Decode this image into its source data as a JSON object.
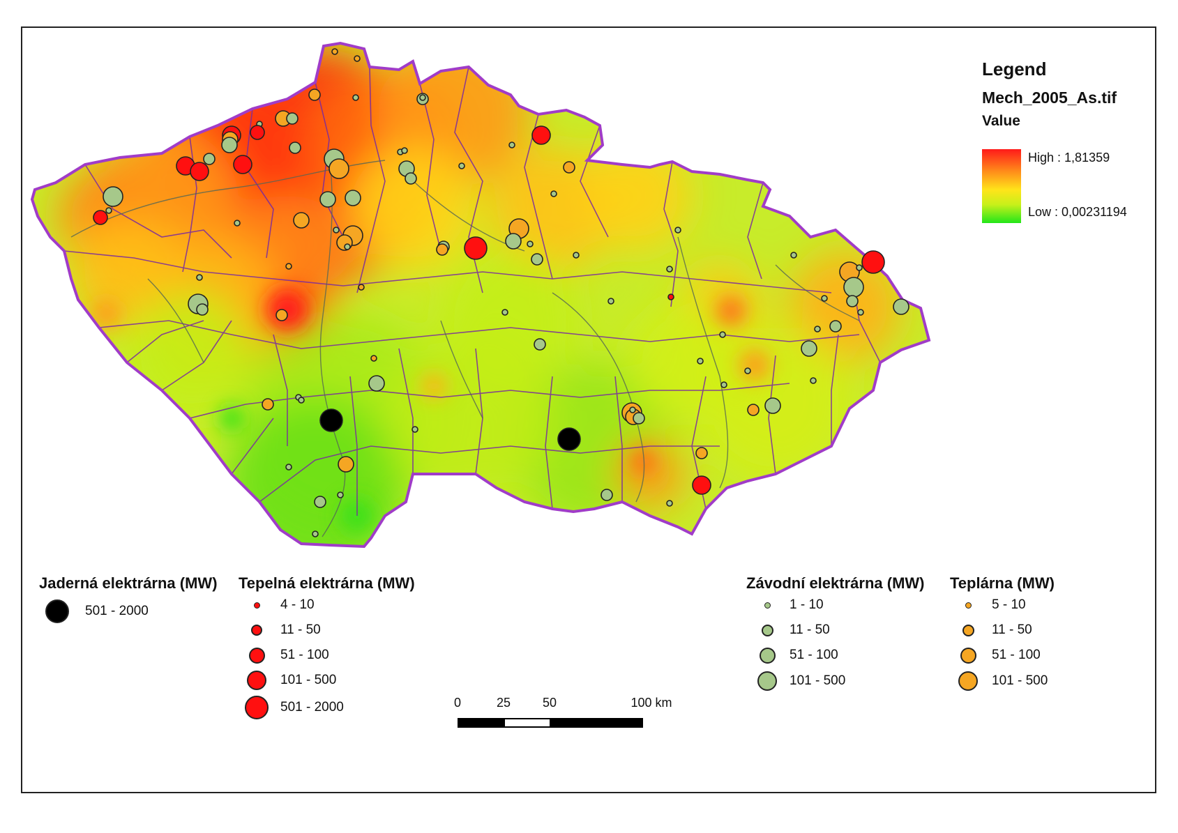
{
  "legend": {
    "title": "Legend",
    "layer_name": "Mech_2005_As.tif",
    "value_label": "Value",
    "high_label": "High : 1,81359",
    "low_label": "Low : 0,00231194",
    "ramp_colors": [
      "#ff1a1a",
      "#ff8c1a",
      "#ffe41a",
      "#c8f01a",
      "#22e61a"
    ]
  },
  "symbol_legends": {
    "nuclear": {
      "title": "Jaderná elektrárna (MW)",
      "color": "#000000",
      "classes": [
        "501 - 2000"
      ]
    },
    "thermal": {
      "title": "Tepelná elektrárna (MW)",
      "color": "#ff1010",
      "classes": [
        "4 - 10",
        "11 - 50",
        "51 - 100",
        "101 - 500",
        "501 - 2000"
      ]
    },
    "industrial": {
      "title": "Závodní elektrárna (MW)",
      "color": "#a6c88a",
      "classes": [
        "1 - 10",
        "11 - 50",
        "51 - 100",
        "101 - 500"
      ]
    },
    "heating": {
      "title": "Teplárna (MW)",
      "color": "#f5a623",
      "classes": [
        "5 - 10",
        "11 - 50",
        "51 - 100",
        "101 - 500"
      ]
    }
  },
  "scale_bar": {
    "ticks": [
      "0",
      "25",
      "50",
      "100 km"
    ]
  },
  "map": {
    "region": "Czech Republic",
    "colors": {
      "border": "#a03cc8",
      "districts": "#7a2aa0",
      "rivers": "#556655",
      "water": "#3399dd"
    }
  }
}
